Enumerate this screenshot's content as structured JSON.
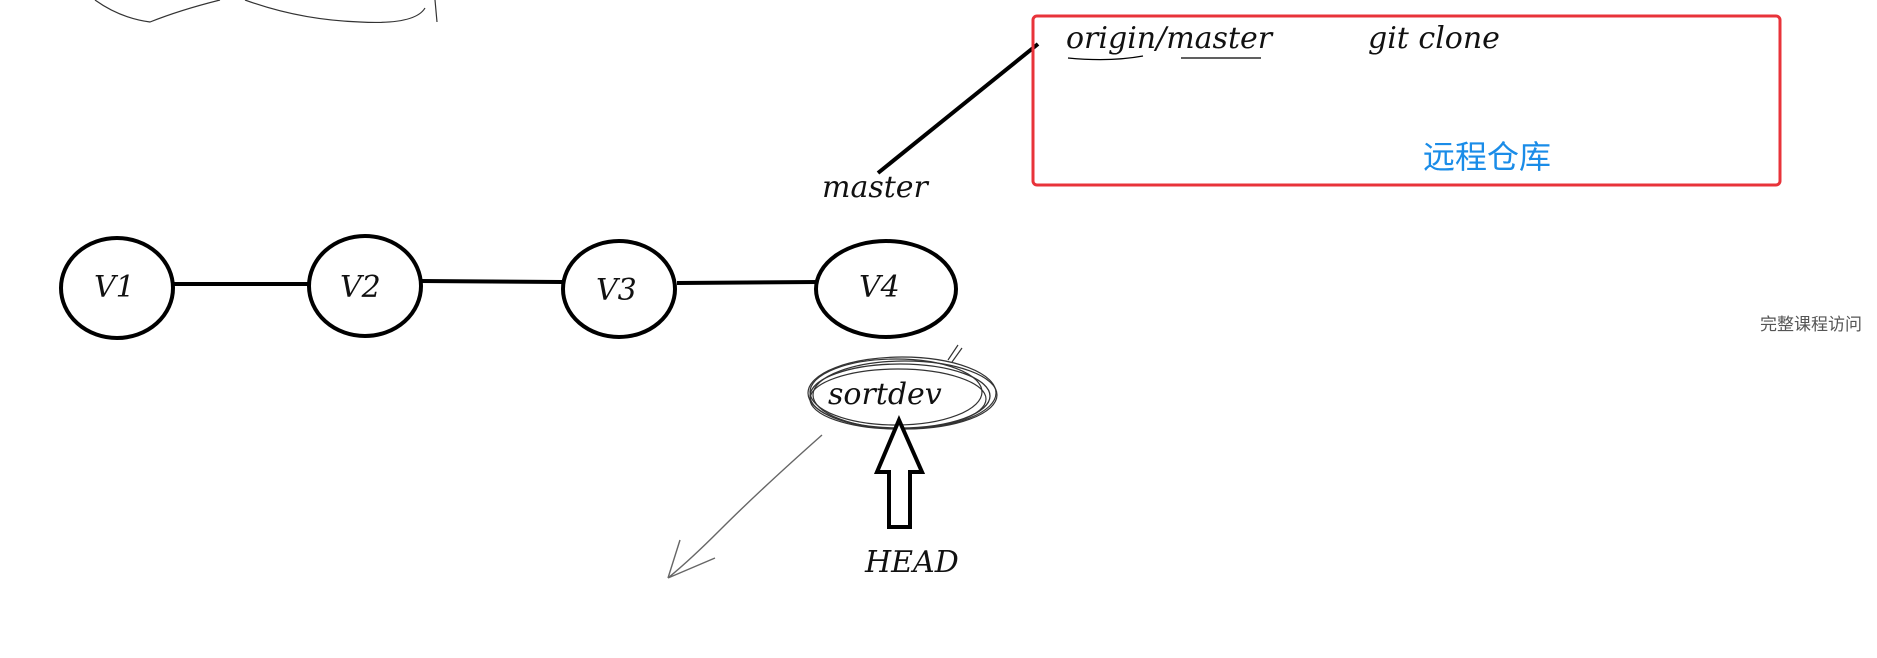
{
  "nodes": [
    {
      "id": "V1",
      "label": "V1"
    },
    {
      "id": "V2",
      "label": "V2"
    },
    {
      "id": "V3",
      "label": "V3"
    },
    {
      "id": "V4",
      "label": "V4"
    }
  ],
  "branch_labels": {
    "master": "master",
    "sortdev": "sortdev",
    "head": "HEAD"
  },
  "remote_box": {
    "origin_master": "origin/master",
    "command": "git clone",
    "title": "远程仓库",
    "border_color": "#e8333a",
    "title_color": "#1a8ce8"
  },
  "watermark": "完整课程访问"
}
